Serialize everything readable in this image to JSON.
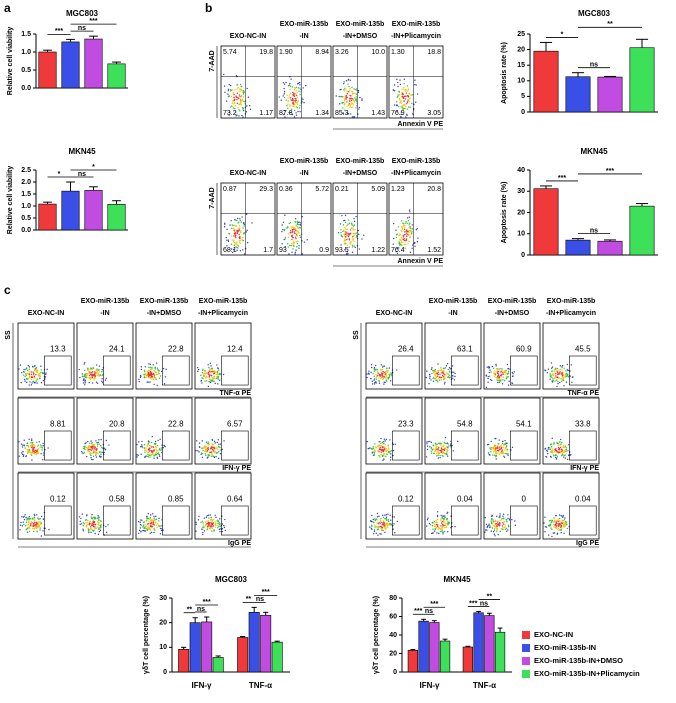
{
  "labels": {
    "a": "a",
    "b": "b",
    "c": "c"
  },
  "chart_data": [
    {
      "type": "bar",
      "title": "MGC803",
      "y_label": "Relative cell viability",
      "values": [
        1.0,
        1.28,
        1.36,
        0.67
      ],
      "errors": [
        0.05,
        0.07,
        0.08,
        0.05
      ],
      "colors": [
        "#f0393b",
        "#3a4fe6",
        "#c04ce2",
        "#3ee05a"
      ],
      "ylim": [
        0,
        1.5
      ],
      "yticks": [
        {
          "value": 0,
          "label": "0.0"
        },
        0.5,
        {
          "value": 1,
          "label": "1.0"
        },
        1.5
      ],
      "annotations": [
        "***",
        "ns",
        "***"
      ]
    },
    {
      "type": "bar",
      "title": "MKN45",
      "y_label": "Relative cell viability",
      "values": [
        1.08,
        1.62,
        1.65,
        1.07
      ],
      "errors": [
        0.08,
        0.38,
        0.15,
        0.15
      ],
      "colors": [
        "#f0393b",
        "#3a4fe6",
        "#c04ce2",
        "#3ee05a"
      ],
      "ylim": [
        0,
        2.5
      ],
      "yticks": [
        {
          "value": 0,
          "label": "0.0"
        },
        0.5,
        {
          "value": 1,
          "label": "1.0"
        },
        1.5,
        {
          "value": 2,
          "label": "2.0"
        },
        2.5
      ],
      "annotations": [
        "*",
        "ns",
        "*"
      ]
    },
    {
      "type": "bar",
      "title": "MGC803",
      "y_label": "Apoptosis rate (%)",
      "values": [
        19.5,
        11.3,
        11.2,
        20.6
      ],
      "errors": [
        2.8,
        1.3,
        0.2,
        2.7
      ],
      "colors": [
        "#f0393b",
        "#3a4fe6",
        "#c04ce2",
        "#3ee05a"
      ],
      "ylim": [
        0,
        25
      ],
      "yticks": [
        0,
        5,
        10,
        15,
        20,
        25
      ],
      "annotations": [
        "*",
        "ns",
        "**"
      ]
    },
    {
      "type": "bar",
      "title": "MKN45",
      "y_label": "Apoptosis rate (%)",
      "values": [
        31.2,
        7.0,
        6.5,
        23.0
      ],
      "errors": [
        1.3,
        0.7,
        0.6,
        1.2
      ],
      "colors": [
        "#f0393b",
        "#3a4fe6",
        "#c04ce2",
        "#3ee05a"
      ],
      "ylim": [
        0,
        40
      ],
      "yticks": [
        0,
        10,
        20,
        30,
        40
      ],
      "annotations": [
        "***",
        "ns",
        "***"
      ]
    },
    {
      "type": "bar",
      "title": "MGC803",
      "y_label": "γδT cell percentage (%)",
      "categories": [
        "IFN-γ",
        "TNF-α"
      ],
      "series": [
        {
          "color": "#f0393b",
          "values": [
            9.2,
            14.0
          ],
          "errors": [
            0.8,
            0.4
          ]
        },
        {
          "color": "#3a4fe6",
          "values": [
            20.0,
            24.2
          ],
          "errors": [
            2.0,
            2.0
          ]
        },
        {
          "color": "#c04ce2",
          "values": [
            20.3,
            23.0
          ],
          "errors": [
            2.0,
            1.2
          ]
        },
        {
          "color": "#3ee05a",
          "values": [
            5.9,
            12.1
          ],
          "errors": [
            0.6,
            0.4
          ]
        }
      ],
      "ylim": [
        0,
        30
      ],
      "yticks": [
        0,
        10,
        20,
        30
      ],
      "annotations": [
        [
          "**",
          "ns",
          "***"
        ],
        [
          "**",
          "ns",
          "***"
        ]
      ]
    },
    {
      "type": "bar",
      "title": "MKN45",
      "y_label": "γδT cell percentage (%)",
      "categories": [
        "IFN-γ",
        "TNF-α"
      ],
      "series": [
        {
          "name": "EXO-NC-IN",
          "color": "#f0393b",
          "values": [
            23.5,
            27.0
          ],
          "errors": [
            0.8,
            0.8
          ]
        },
        {
          "name": "EXO-miR-135b-IN",
          "color": "#3a4fe6",
          "values": [
            55.0,
            64.0
          ],
          "errors": [
            2.0,
            1.5
          ]
        },
        {
          "name": "EXO-miR-135b-IN+DMSO",
          "color": "#c04ce2",
          "values": [
            53.5,
            61.0
          ],
          "errors": [
            2.0,
            2.5
          ]
        },
        {
          "name": "EXO-miR-135b-IN+Plicamycin",
          "color": "#3ee05a",
          "values": [
            33.5,
            43.0
          ],
          "errors": [
            2.0,
            4.5
          ]
        }
      ],
      "ylim": [
        0,
        80
      ],
      "yticks": [
        0,
        20,
        40,
        60,
        80
      ],
      "annotations": [
        [
          "***",
          "ns",
          "***"
        ],
        [
          "***",
          "ns",
          "**"
        ]
      ],
      "legend": "right"
    }
  ],
  "flow_headers": [
    [
      "EXO-NC-IN"
    ],
    [
      "EXO-miR-135b",
      "-IN"
    ],
    [
      "EXO-miR-135b",
      "-IN+DMSO"
    ],
    [
      "EXO-miR-135b",
      "-IN+Plicamycin"
    ]
  ],
  "apoptosis_flow": {
    "y_label": "7-AAD",
    "x_label": "Annexin V PE",
    "rows": [
      [
        [
          "5.74",
          "19.8",
          "73.2",
          "1.17"
        ],
        [
          "1.90",
          "8.94",
          "87.8",
          "1.34"
        ],
        [
          "3.26",
          "10.0",
          "85.3",
          "1.43"
        ],
        [
          "1.30",
          "18.8",
          "76.9",
          "3.05"
        ]
      ],
      [
        [
          "0.87",
          "29.3",
          "68.1",
          "1.7"
        ],
        [
          "0.36",
          "5.72",
          "93",
          "0.9"
        ],
        [
          "0.21",
          "5.09",
          "93.5",
          "1.22"
        ],
        [
          "1.23",
          "20.8",
          "76.4",
          "1.52"
        ]
      ]
    ]
  },
  "cytokine_flow": {
    "y_label": "SS",
    "row_labels": [
      "TNF-α PE",
      "IFN-γ PE",
      "IgG PE"
    ],
    "panels": [
      [
        [
          "13.3",
          "24.1",
          "22.8",
          "12.4"
        ],
        [
          "8.81",
          "20.8",
          "22.8",
          "6.57"
        ],
        [
          "0.12",
          "0.58",
          "0.85",
          "0.64"
        ]
      ],
      [
        [
          "26.4",
          "63.1",
          "60.9",
          "45.5"
        ],
        [
          "23.3",
          "54.8",
          "54.1",
          "33.8"
        ],
        [
          "0.12",
          "0.04",
          "0",
          "0.04"
        ]
      ]
    ]
  }
}
